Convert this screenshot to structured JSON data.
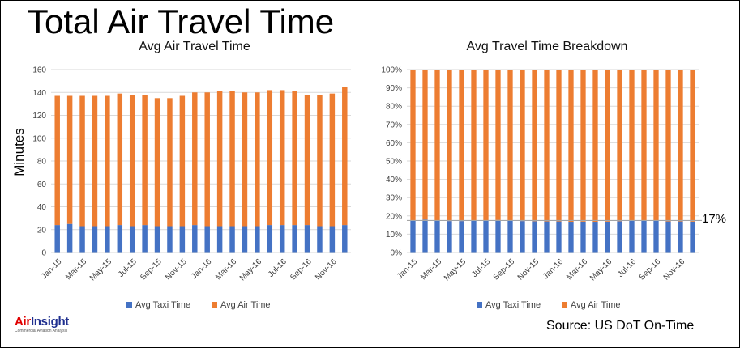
{
  "title": "Total Air Travel Time",
  "source": "Source: US DoT On-Time",
  "logo": {
    "name_part1": "Air",
    "name_part2": "Insight",
    "tagline": "Commercial Aviation Analysis"
  },
  "colors": {
    "taxi": "#4472C4",
    "air": "#ED7D31",
    "grid": "#D9D9D9"
  },
  "annotation": "17%",
  "chart_data": [
    {
      "type": "bar",
      "stacked": true,
      "title": "Avg Air Travel Time",
      "ylabel": "Minutes",
      "xlabel": "",
      "ylim": [
        0,
        160
      ],
      "yticks": [
        "0",
        "20",
        "40",
        "60",
        "80",
        "100",
        "120",
        "140",
        "160"
      ],
      "grid": true,
      "legend_position": "bottom",
      "categories": [
        "Jan-15",
        "Feb-15",
        "Mar-15",
        "Apr-15",
        "May-15",
        "Jun-15",
        "Jul-15",
        "Aug-15",
        "Sep-15",
        "Oct-15",
        "Nov-15",
        "Dec-15",
        "Jan-16",
        "Feb-16",
        "Mar-16",
        "Apr-16",
        "May-16",
        "Jun-16",
        "Jul-16",
        "Aug-16",
        "Sep-16",
        "Oct-16",
        "Nov-16",
        "Dec-16"
      ],
      "xtick_labels": [
        "Jan-15",
        "Mar-15",
        "May-15",
        "Jul-15",
        "Sep-15",
        "Nov-15",
        "Jan-16",
        "Mar-16",
        "May-16",
        "Jul-16",
        "Sep-16",
        "Nov-16"
      ],
      "series": [
        {
          "name": "Avg Taxi Time",
          "values": [
            24,
            25,
            23,
            23,
            23,
            24,
            23,
            24,
            23,
            23,
            23,
            24,
            23,
            23,
            23,
            23,
            23,
            24,
            24,
            24,
            24,
            23,
            23,
            24
          ]
        },
        {
          "name": "Avg Air Time",
          "values": [
            113,
            112,
            114,
            114,
            114,
            115,
            115,
            114,
            112,
            112,
            114,
            116,
            117,
            118,
            118,
            117,
            117,
            118,
            118,
            117,
            114,
            115,
            116,
            121
          ]
        }
      ]
    },
    {
      "type": "bar",
      "stacked": true,
      "title": "Avg Travel Time Breakdown",
      "ylabel": "",
      "xlabel": "",
      "ylim": [
        0,
        100
      ],
      "yticks": [
        "0%",
        "10%",
        "20%",
        "30%",
        "40%",
        "50%",
        "60%",
        "70%",
        "80%",
        "90%",
        "100%"
      ],
      "grid": true,
      "legend_position": "bottom",
      "reference_line": 17.5,
      "categories": [
        "Jan-15",
        "Feb-15",
        "Mar-15",
        "Apr-15",
        "May-15",
        "Jun-15",
        "Jul-15",
        "Aug-15",
        "Sep-15",
        "Oct-15",
        "Nov-15",
        "Dec-15",
        "Jan-16",
        "Feb-16",
        "Mar-16",
        "Apr-16",
        "May-16",
        "Jun-16",
        "Jul-16",
        "Aug-16",
        "Sep-16",
        "Oct-16",
        "Nov-16",
        "Dec-16"
      ],
      "xtick_labels": [
        "Jan-15",
        "Mar-15",
        "May-15",
        "Jul-15",
        "Sep-15",
        "Nov-15",
        "Jan-16",
        "Mar-16",
        "May-16",
        "Jul-16",
        "Sep-16",
        "Nov-16"
      ],
      "series": [
        {
          "name": "Avg Taxi Time",
          "values": [
            17.5,
            18,
            17.3,
            17.2,
            17.2,
            17.3,
            17.6,
            17.8,
            17.6,
            17.2,
            17.1,
            17.0,
            17.0,
            16.8,
            16.9,
            16.8,
            16.9,
            17.1,
            17.3,
            17.6,
            17.5,
            17.0,
            17.0,
            16.9
          ]
        },
        {
          "name": "Avg Air Time",
          "values": [
            82.5,
            82,
            82.7,
            82.8,
            82.8,
            82.7,
            82.4,
            82.2,
            82.4,
            82.8,
            82.9,
            83.0,
            83.0,
            83.2,
            83.1,
            83.2,
            83.1,
            82.9,
            82.7,
            82.4,
            82.5,
            83.0,
            83.0,
            83.1
          ]
        }
      ]
    }
  ]
}
